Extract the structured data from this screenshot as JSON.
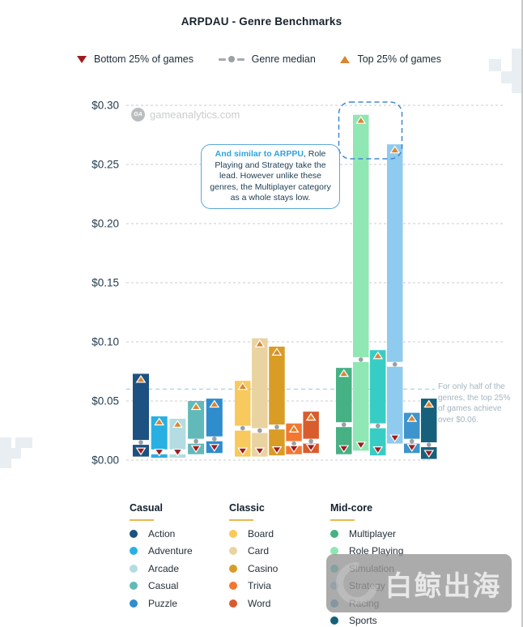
{
  "title": "ARPDAU - Genre Benchmarks",
  "top_legend": {
    "bottom": "Bottom 25% of games",
    "median": "Genre median",
    "top": "Top 25% of games"
  },
  "colors": {
    "bottom_marker": "#9e1b1b",
    "top_marker": "#d9862f",
    "median_marker": "#9aa0a3",
    "accent_underline": "#eab94d",
    "callout_border": "#5ba8da",
    "callout_highlight_text": "#2fa3db",
    "highlight_box": "#3f88d4",
    "threshold_line": "#a9d3e6",
    "gridline": "#cbcbcb",
    "axis_text": "#243d50",
    "note_text": "#a4b6c0"
  },
  "chart_watermark": {
    "logo": "GA",
    "text": "gameanalytics.com"
  },
  "callout": {
    "highlight": "And similar to ARPPU",
    "rest": ", Role Playing and Strategy take the lead. However unlike these genres, the Multiplayer category as a whole stays low."
  },
  "side_note": "For only half of the genres, the top 25% of games achieve over $0.06.",
  "overlay_watermark": {
    "text": "白鲸出海"
  },
  "chart_data": {
    "type": "bar",
    "subtype": "floating-range-bars",
    "title": "ARPDAU - Genre Benchmarks",
    "ylim": [
      0,
      0.3
    ],
    "grid": "dashed-horizontal",
    "legend_position": "bottom",
    "yticks": [
      {
        "label": "$0.00",
        "value": 0.0
      },
      {
        "label": "$0.05",
        "value": 0.05
      },
      {
        "label": "$0.10",
        "value": 0.1
      },
      {
        "label": "$0.15",
        "value": 0.15
      },
      {
        "label": "$0.20",
        "value": 0.2
      },
      {
        "label": "$0.25",
        "value": 0.25
      },
      {
        "label": "$0.30",
        "value": 0.3
      }
    ],
    "threshold_line": {
      "value": 0.06
    },
    "marker_semantics": {
      "bar_bottom": "Bottom 25% of games",
      "dot": "Genre median",
      "bar_top": "Top 25% of games"
    },
    "groups": [
      {
        "name": "Casual",
        "genres": [
          {
            "name": "Action",
            "color": "#1c5181",
            "bottom25": 0.003,
            "median": 0.015,
            "top25": 0.073
          },
          {
            "name": "Adventure",
            "color": "#29b0e3",
            "bottom25": 0.002,
            "median": 0.007,
            "top25": 0.037
          },
          {
            "name": "Arcade",
            "color": "#b4dce2",
            "bottom25": 0.002,
            "median": 0.007,
            "top25": 0.035
          },
          {
            "name": "Casual",
            "color": "#62b9ba",
            "bottom25": 0.005,
            "median": 0.016,
            "top25": 0.05
          },
          {
            "name": "Puzzle",
            "color": "#2f8ccd",
            "bottom25": 0.006,
            "median": 0.018,
            "top25": 0.052
          }
        ]
      },
      {
        "name": "Classic",
        "genres": [
          {
            "name": "Board",
            "color": "#f8c95c",
            "bottom25": 0.003,
            "median": 0.027,
            "top25": 0.067
          },
          {
            "name": "Card",
            "color": "#e9d3a0",
            "bottom25": 0.003,
            "median": 0.025,
            "top25": 0.103
          },
          {
            "name": "Casino",
            "color": "#d99d26",
            "bottom25": 0.004,
            "median": 0.028,
            "top25": 0.096
          },
          {
            "name": "Trivia",
            "color": "#f37730",
            "bottom25": 0.005,
            "median": 0.014,
            "top25": 0.031
          },
          {
            "name": "Word",
            "color": "#d85c2e",
            "bottom25": 0.006,
            "median": 0.016,
            "top25": 0.041
          }
        ]
      },
      {
        "name": "Mid-core",
        "genres": [
          {
            "name": "Multiplayer",
            "color": "#45b184",
            "bottom25": 0.005,
            "median": 0.03,
            "top25": 0.078
          },
          {
            "name": "Role Playing",
            "color": "#8fe7b4",
            "bottom25": 0.008,
            "median": 0.085,
            "top25": 0.292
          },
          {
            "name": "Simulation",
            "color": "#38cdc4",
            "bottom25": 0.004,
            "median": 0.029,
            "top25": 0.093
          },
          {
            "name": "Strategy",
            "color": "#8fcbee",
            "bottom25": 0.014,
            "median": 0.081,
            "top25": 0.267
          },
          {
            "name": "Racing",
            "color": "#3e94cc",
            "bottom25": 0.006,
            "median": 0.016,
            "top25": 0.04
          },
          {
            "name": "Sports",
            "color": "#16607b",
            "bottom25": 0.001,
            "median": 0.013,
            "top25": 0.052
          }
        ]
      }
    ]
  }
}
